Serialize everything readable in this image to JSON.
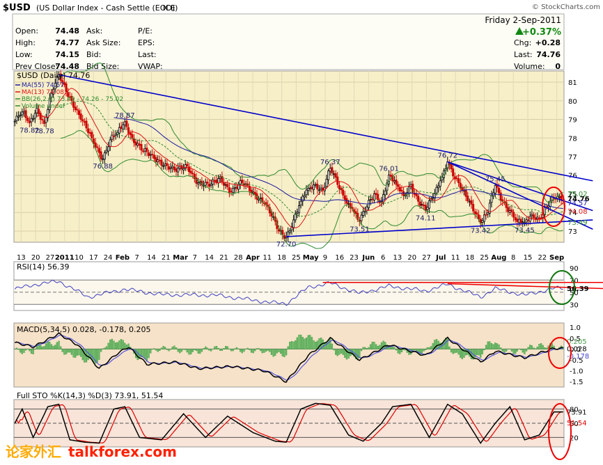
{
  "header": {
    "symbol": "$USD",
    "name": "(US Dollar Index - Cash Settle (EOD))",
    "exchange": "ICE",
    "brand": "© StockCharts.com",
    "date": "Friday  2-Sep-2011",
    "change_pct": "+0.37%",
    "quote_left": [
      {
        "label": "Open:",
        "value": "74.48"
      },
      {
        "label": "High:",
        "value": "74.77"
      },
      {
        "label": "Low:",
        "value": "74.15"
      },
      {
        "label": "Prev Close:",
        "value": "74.48"
      }
    ],
    "quote_mid": [
      {
        "label": "Ask:",
        "value": ""
      },
      {
        "label": "Ask Size:",
        "value": ""
      },
      {
        "label": "Bid:",
        "value": ""
      },
      {
        "label": "Bid Size:",
        "value": ""
      }
    ],
    "quote_mid2": [
      {
        "label": "P/E:"
      },
      {
        "label": "EPS:"
      },
      {
        "label": "Last:"
      },
      {
        "label": "VWAP:"
      }
    ],
    "quote_right": [
      {
        "label": "Chg:",
        "value": "+0.28"
      },
      {
        "label": "Last:",
        "value": "74.76"
      },
      {
        "label": "Volume:",
        "value": "0"
      }
    ]
  },
  "colors": {
    "price_bg": "#f7efc8",
    "rsi_bg": "#ffffff",
    "macd_bg": "#f6e2c8",
    "sto_bg": "#f8e4d8",
    "bull": "#000000",
    "bear": "#cc0000",
    "ma55": "#1a1aa0",
    "ma13": "#dd1111",
    "bb": "#2e8b2e",
    "trend": "#0000cc",
    "circle": "#ee0000",
    "rsi_circle": "#117711"
  },
  "chart_data": [
    {
      "type": "candlestick",
      "title": "$USD (Daily) 74.76",
      "legend": [
        {
          "name": "MA(55) 74.57",
          "color": "#1a1aa0"
        },
        {
          "name": "MA(13) 74.08",
          "color": "#dd1111"
        },
        {
          "name": "BB(26,2.0) 73.49 - 74.26 - 75.02",
          "color": "#2e8b2e"
        },
        {
          "name": "Volume undef",
          "color": "#2e8b2e"
        }
      ],
      "y_ticks": [
        73,
        74,
        75,
        76,
        77,
        78,
        79,
        80,
        81
      ],
      "ylim": [
        72.4,
        81.6
      ],
      "right_labels": [
        "75.02",
        "74.76",
        "74.57",
        "74.08",
        "73.49"
      ],
      "x_ticks": [
        "13",
        "20",
        "27",
        "2011",
        "10",
        "17",
        "24",
        "Feb",
        "7",
        "14",
        "21",
        "Mar",
        "7",
        "14",
        "21",
        "28",
        "Apr",
        "11",
        "18",
        "25",
        "May",
        "9",
        "16",
        "23",
        "Jun",
        "6",
        "13",
        "20",
        "27",
        "Jul",
        "11",
        "18",
        "25",
        "Aug",
        "8",
        "15",
        "22",
        "Sep"
      ],
      "close_anchors": [
        [
          0,
          78.9
        ],
        [
          4,
          79.4
        ],
        [
          8,
          78.82
        ],
        [
          12,
          79.6
        ],
        [
          16,
          78.78
        ],
        [
          20,
          80.4
        ],
        [
          24,
          81.4
        ],
        [
          30,
          80.2
        ],
        [
          36,
          79.0
        ],
        [
          42,
          78.0
        ],
        [
          48,
          76.88
        ],
        [
          52,
          77.9
        ],
        [
          56,
          78.3
        ],
        [
          60,
          78.87
        ],
        [
          64,
          78.0
        ],
        [
          70,
          77.3
        ],
        [
          76,
          76.9
        ],
        [
          82,
          76.6
        ],
        [
          88,
          76.2
        ],
        [
          94,
          76.5
        ],
        [
          100,
          75.6
        ],
        [
          106,
          75.4
        ],
        [
          112,
          75.9
        ],
        [
          118,
          75.1
        ],
        [
          124,
          75.6
        ],
        [
          130,
          75.1
        ],
        [
          136,
          74.5
        ],
        [
          140,
          73.8
        ],
        [
          144,
          73.0
        ],
        [
          148,
          72.7
        ],
        [
          152,
          73.6
        ],
        [
          156,
          74.6
        ],
        [
          160,
          75.3
        ],
        [
          164,
          75.5
        ],
        [
          168,
          75.2
        ],
        [
          172,
          76.37
        ],
        [
          176,
          75.5
        ],
        [
          180,
          74.7
        ],
        [
          184,
          74.2
        ],
        [
          188,
          73.51
        ],
        [
          192,
          74.3
        ],
        [
          196,
          75.0
        ],
        [
          200,
          74.6
        ],
        [
          204,
          76.01
        ],
        [
          208,
          75.5
        ],
        [
          212,
          74.9
        ],
        [
          216,
          75.5
        ],
        [
          220,
          74.6
        ],
        [
          224,
          74.11
        ],
        [
          228,
          74.8
        ],
        [
          232,
          75.7
        ],
        [
          236,
          76.72
        ],
        [
          240,
          75.8
        ],
        [
          244,
          75.2
        ],
        [
          248,
          74.6
        ],
        [
          252,
          73.9
        ],
        [
          254,
          73.42
        ],
        [
          258,
          74.0
        ],
        [
          262,
          75.45
        ],
        [
          266,
          74.6
        ],
        [
          270,
          74.1
        ],
        [
          274,
          73.5
        ],
        [
          278,
          73.45
        ],
        [
          282,
          73.9
        ],
        [
          286,
          73.7
        ],
        [
          290,
          74.3
        ],
        [
          294,
          74.76
        ]
      ],
      "annotations": [
        {
          "label": "78.82",
          "i": 8,
          "v": 78.82,
          "pos": "below"
        },
        {
          "label": "78.78",
          "i": 16,
          "v": 78.78,
          "pos": "below"
        },
        {
          "label": "76.88",
          "i": 48,
          "v": 76.88,
          "pos": "below"
        },
        {
          "label": "78.87",
          "i": 60,
          "v": 78.87,
          "pos": "above"
        },
        {
          "label": "72.70",
          "i": 148,
          "v": 72.7,
          "pos": "below"
        },
        {
          "label": "76.37",
          "i": 172,
          "v": 76.37,
          "pos": "above"
        },
        {
          "label": "73.51",
          "i": 188,
          "v": 73.51,
          "pos": "below"
        },
        {
          "label": "76.01",
          "i": 204,
          "v": 76.01,
          "pos": "above"
        },
        {
          "label": "74.11",
          "i": 224,
          "v": 74.11,
          "pos": "below"
        },
        {
          "label": "76.72",
          "i": 236,
          "v": 76.72,
          "pos": "above"
        },
        {
          "label": "73.42",
          "i": 254,
          "v": 73.42,
          "pos": "below"
        },
        {
          "label": "75.45",
          "i": 262,
          "v": 75.45,
          "pos": "above"
        },
        {
          "label": "73.45",
          "i": 278,
          "v": 73.45,
          "pos": "below"
        }
      ],
      "trendlines": [
        {
          "from": [
            24,
            81.4
          ],
          "to": [
            300,
            75.7
          ]
        },
        {
          "from": [
            148,
            72.7
          ],
          "to": [
            300,
            73.6
          ]
        },
        {
          "from": [
            236,
            76.72
          ],
          "to": [
            300,
            73.1
          ]
        },
        {
          "from": [
            236,
            76.72
          ],
          "to": [
            300,
            74.1
          ]
        }
      ]
    },
    {
      "type": "line",
      "title": "RSI(14) 56.39",
      "y_ticks": [
        30,
        50,
        70,
        90
      ],
      "ylim": [
        20,
        100
      ],
      "levels": [
        70,
        50,
        30
      ],
      "right_label": "56.39",
      "anchors": [
        [
          0,
          55
        ],
        [
          10,
          62
        ],
        [
          24,
          68
        ],
        [
          40,
          42
        ],
        [
          60,
          55
        ],
        [
          80,
          46
        ],
        [
          110,
          45
        ],
        [
          140,
          33
        ],
        [
          148,
          31
        ],
        [
          160,
          58
        ],
        [
          172,
          65
        ],
        [
          188,
          48
        ],
        [
          204,
          60
        ],
        [
          224,
          52
        ],
        [
          236,
          63
        ],
        [
          254,
          42
        ],
        [
          262,
          56
        ],
        [
          278,
          45
        ],
        [
          294,
          56.39
        ]
      ]
    },
    {
      "type": "line",
      "title": "MACD(5,34,5) 0.028, -0.178, 0.205",
      "y_ticks": [
        -1.5,
        -1.0,
        -0.5,
        0.0,
        0.5,
        1.0
      ],
      "ylim": [
        -1.75,
        1.2
      ],
      "right_labels": [
        "0.028",
        "0.205",
        "-0.178"
      ],
      "macd_anchors": [
        [
          0,
          0.3
        ],
        [
          10,
          0.1
        ],
        [
          24,
          0.7
        ],
        [
          34,
          0.2
        ],
        [
          46,
          -0.9
        ],
        [
          56,
          -0.2
        ],
        [
          62,
          0.1
        ],
        [
          72,
          -0.7
        ],
        [
          88,
          -0.6
        ],
        [
          100,
          -0.9
        ],
        [
          118,
          -0.8
        ],
        [
          136,
          -1.0
        ],
        [
          148,
          -1.5
        ],
        [
          160,
          -0.3
        ],
        [
          172,
          0.5
        ],
        [
          188,
          -0.5
        ],
        [
          204,
          0.2
        ],
        [
          224,
          -0.3
        ],
        [
          236,
          0.5
        ],
        [
          254,
          -0.6
        ],
        [
          262,
          -0.1
        ],
        [
          278,
          -0.4
        ],
        [
          294,
          0.028
        ]
      ]
    },
    {
      "type": "line",
      "title": "Full STO %K(14,3) %D(3) 73.91, 51.54",
      "y_ticks": [
        20,
        50,
        80
      ],
      "ylim": [
        0,
        100
      ],
      "levels": [
        80,
        50,
        20
      ],
      "right_labels": [
        "73.91",
        "51.54"
      ],
      "k_anchors": [
        [
          0,
          50
        ],
        [
          4,
          80
        ],
        [
          10,
          20
        ],
        [
          18,
          85
        ],
        [
          24,
          90
        ],
        [
          30,
          15
        ],
        [
          38,
          10
        ],
        [
          46,
          8
        ],
        [
          54,
          80
        ],
        [
          60,
          85
        ],
        [
          68,
          20
        ],
        [
          80,
          15
        ],
        [
          92,
          70
        ],
        [
          104,
          20
        ],
        [
          116,
          65
        ],
        [
          130,
          30
        ],
        [
          142,
          12
        ],
        [
          148,
          10
        ],
        [
          156,
          80
        ],
        [
          164,
          92
        ],
        [
          172,
          88
        ],
        [
          182,
          25
        ],
        [
          190,
          12
        ],
        [
          200,
          50
        ],
        [
          206,
          85
        ],
        [
          216,
          90
        ],
        [
          226,
          20
        ],
        [
          236,
          90
        ],
        [
          244,
          70
        ],
        [
          254,
          8
        ],
        [
          262,
          50
        ],
        [
          270,
          85
        ],
        [
          278,
          15
        ],
        [
          286,
          25
        ],
        [
          294,
          73.91
        ]
      ]
    }
  ],
  "watermark": {
    "cn": "论家外汇",
    "en": "talkforex.com"
  }
}
